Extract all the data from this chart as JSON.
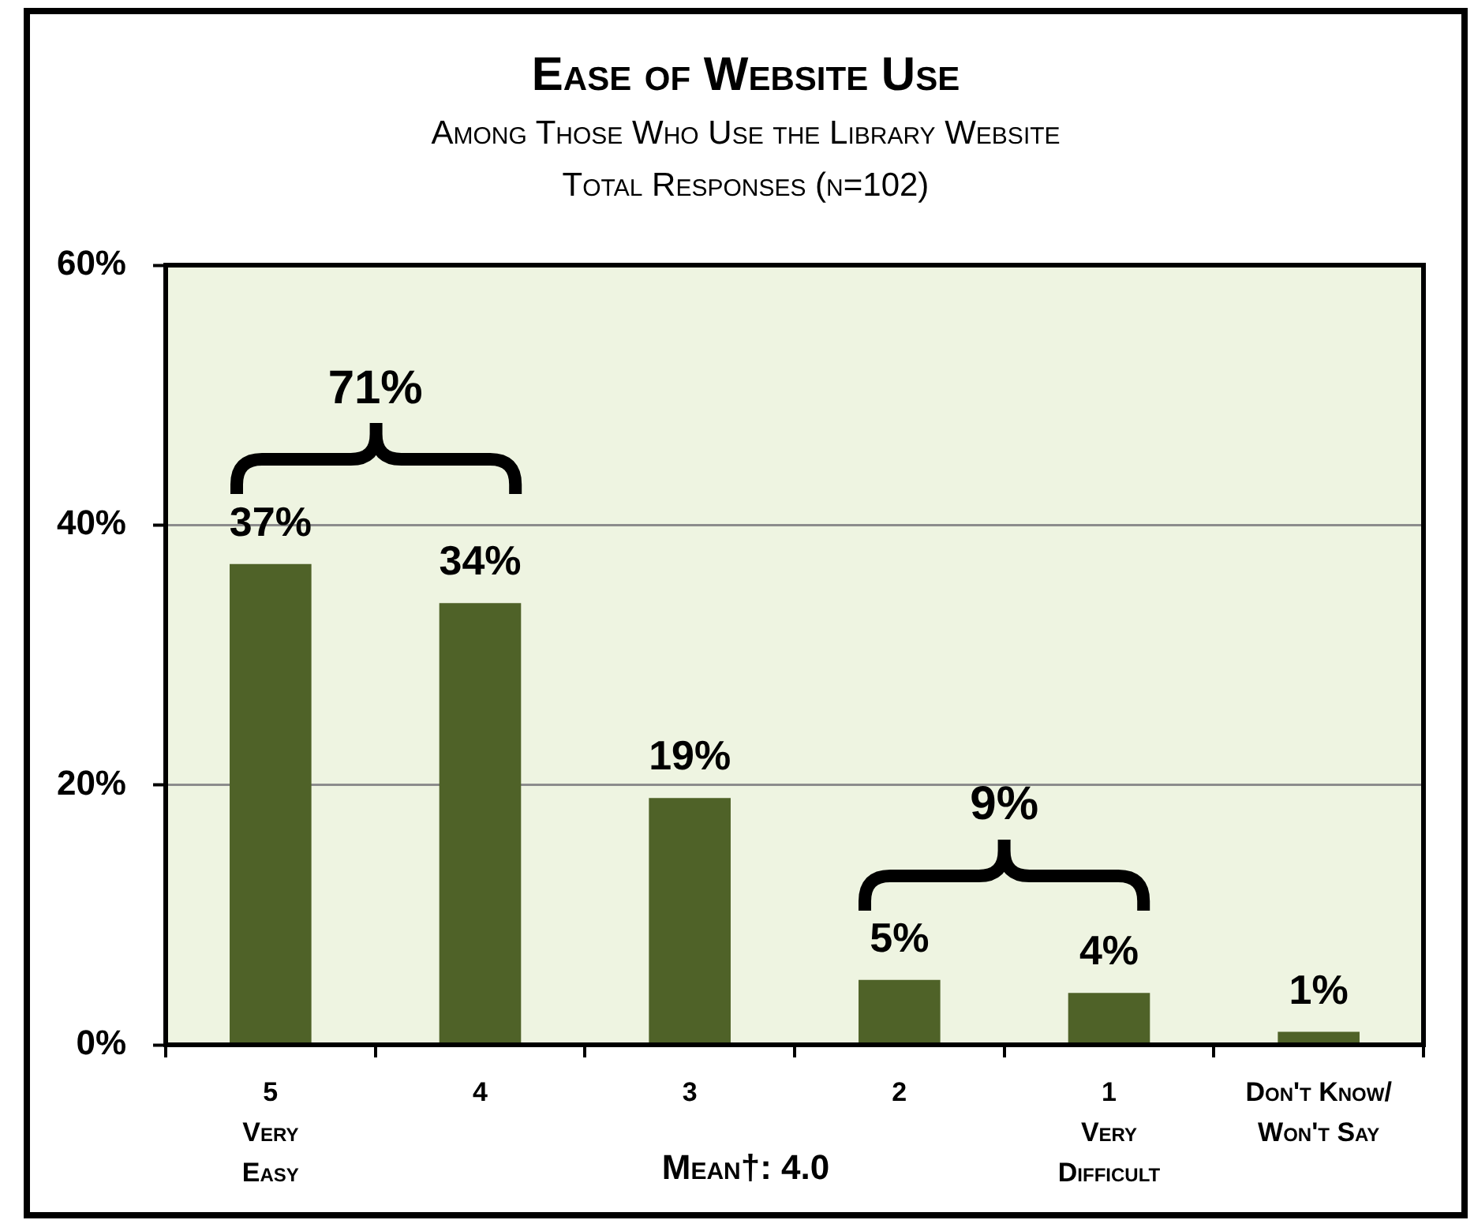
{
  "chart_data": {
    "type": "bar",
    "title": "Ease of Website Use",
    "subtitle": "Among Those Who Use the Library Website\nTotal Responses (n=102)",
    "categories": [
      "5\nVery\nEasy",
      "4",
      "3",
      "2",
      "1\nVery\nDifficult",
      "Don't Know/\nWon't Say"
    ],
    "values": [
      37,
      34,
      19,
      5,
      4,
      1
    ],
    "value_labels": [
      "37%",
      "34%",
      "19%",
      "5%",
      "4%",
      "1%"
    ],
    "color": "#4f6228",
    "ylim": [
      0,
      60
    ],
    "yticks": [
      {
        "value": 0,
        "label": "0%"
      },
      {
        "value": 20,
        "label": "20%"
      },
      {
        "value": 40,
        "label": "40%"
      },
      {
        "value": 60,
        "label": "60%"
      }
    ],
    "grid": "y",
    "annotations": [
      "Mean†: 4.0",
      "71%",
      "9%"
    ]
  }
}
